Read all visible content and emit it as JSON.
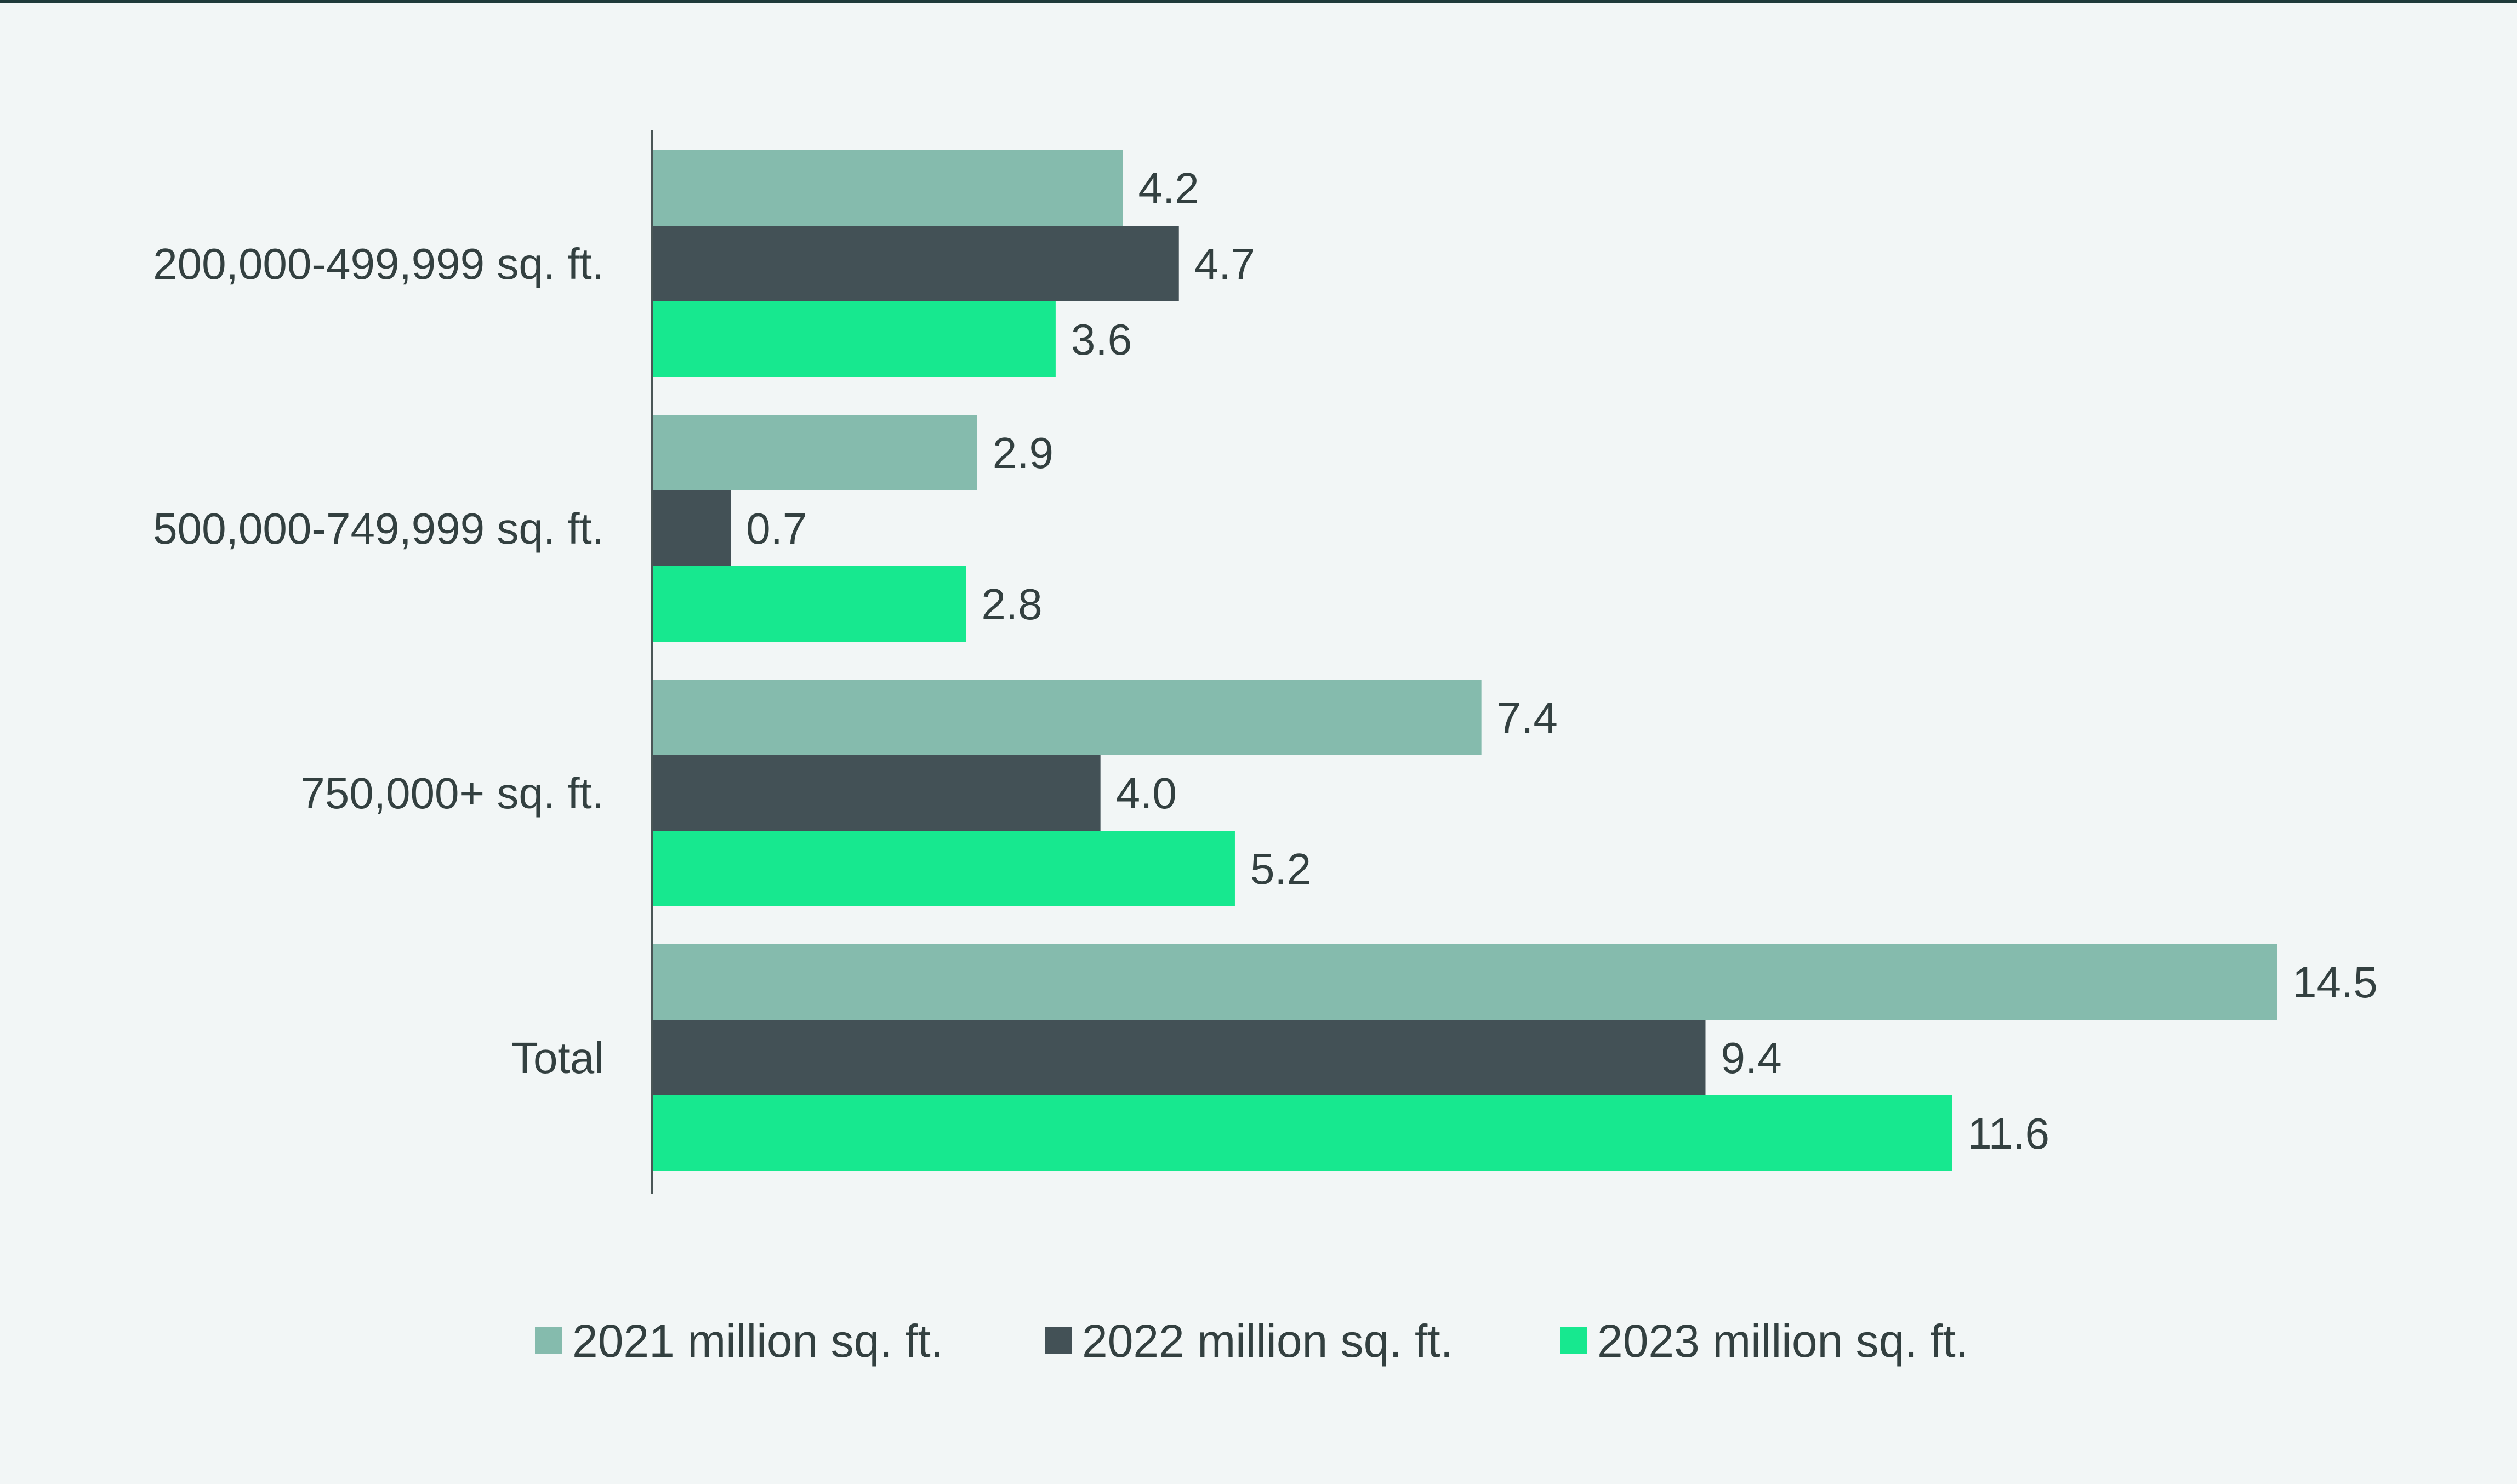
{
  "chart_data": {
    "type": "bar",
    "orientation": "horizontal",
    "title": "",
    "xlabel": "",
    "ylabel": "",
    "xlim": [
      0,
      14.5
    ],
    "grid": false,
    "legend_position": "bottom",
    "categories": [
      "200,000-499,999 sq. ft.",
      "500,000-749,999 sq. ft.",
      "750,000+ sq. ft.",
      "Total"
    ],
    "series": [
      {
        "name": "2021 million sq. ft.",
        "color": "#85bbad",
        "values": [
          4.2,
          2.9,
          7.4,
          14.5
        ],
        "labels": [
          "4.2",
          "2.9",
          "7.4",
          "14.5"
        ]
      },
      {
        "name": "2022 million sq. ft.",
        "color": "#435156",
        "values": [
          4.7,
          0.7,
          4.0,
          9.4
        ],
        "labels": [
          "4.7",
          "0.7",
          "4.0",
          "9.4"
        ]
      },
      {
        "name": "2023 million sq. ft.",
        "color": "#17e88f",
        "values": [
          3.6,
          2.8,
          5.2,
          11.6
        ],
        "labels": [
          "3.6",
          "2.8",
          "5.2",
          "11.6"
        ]
      }
    ]
  }
}
